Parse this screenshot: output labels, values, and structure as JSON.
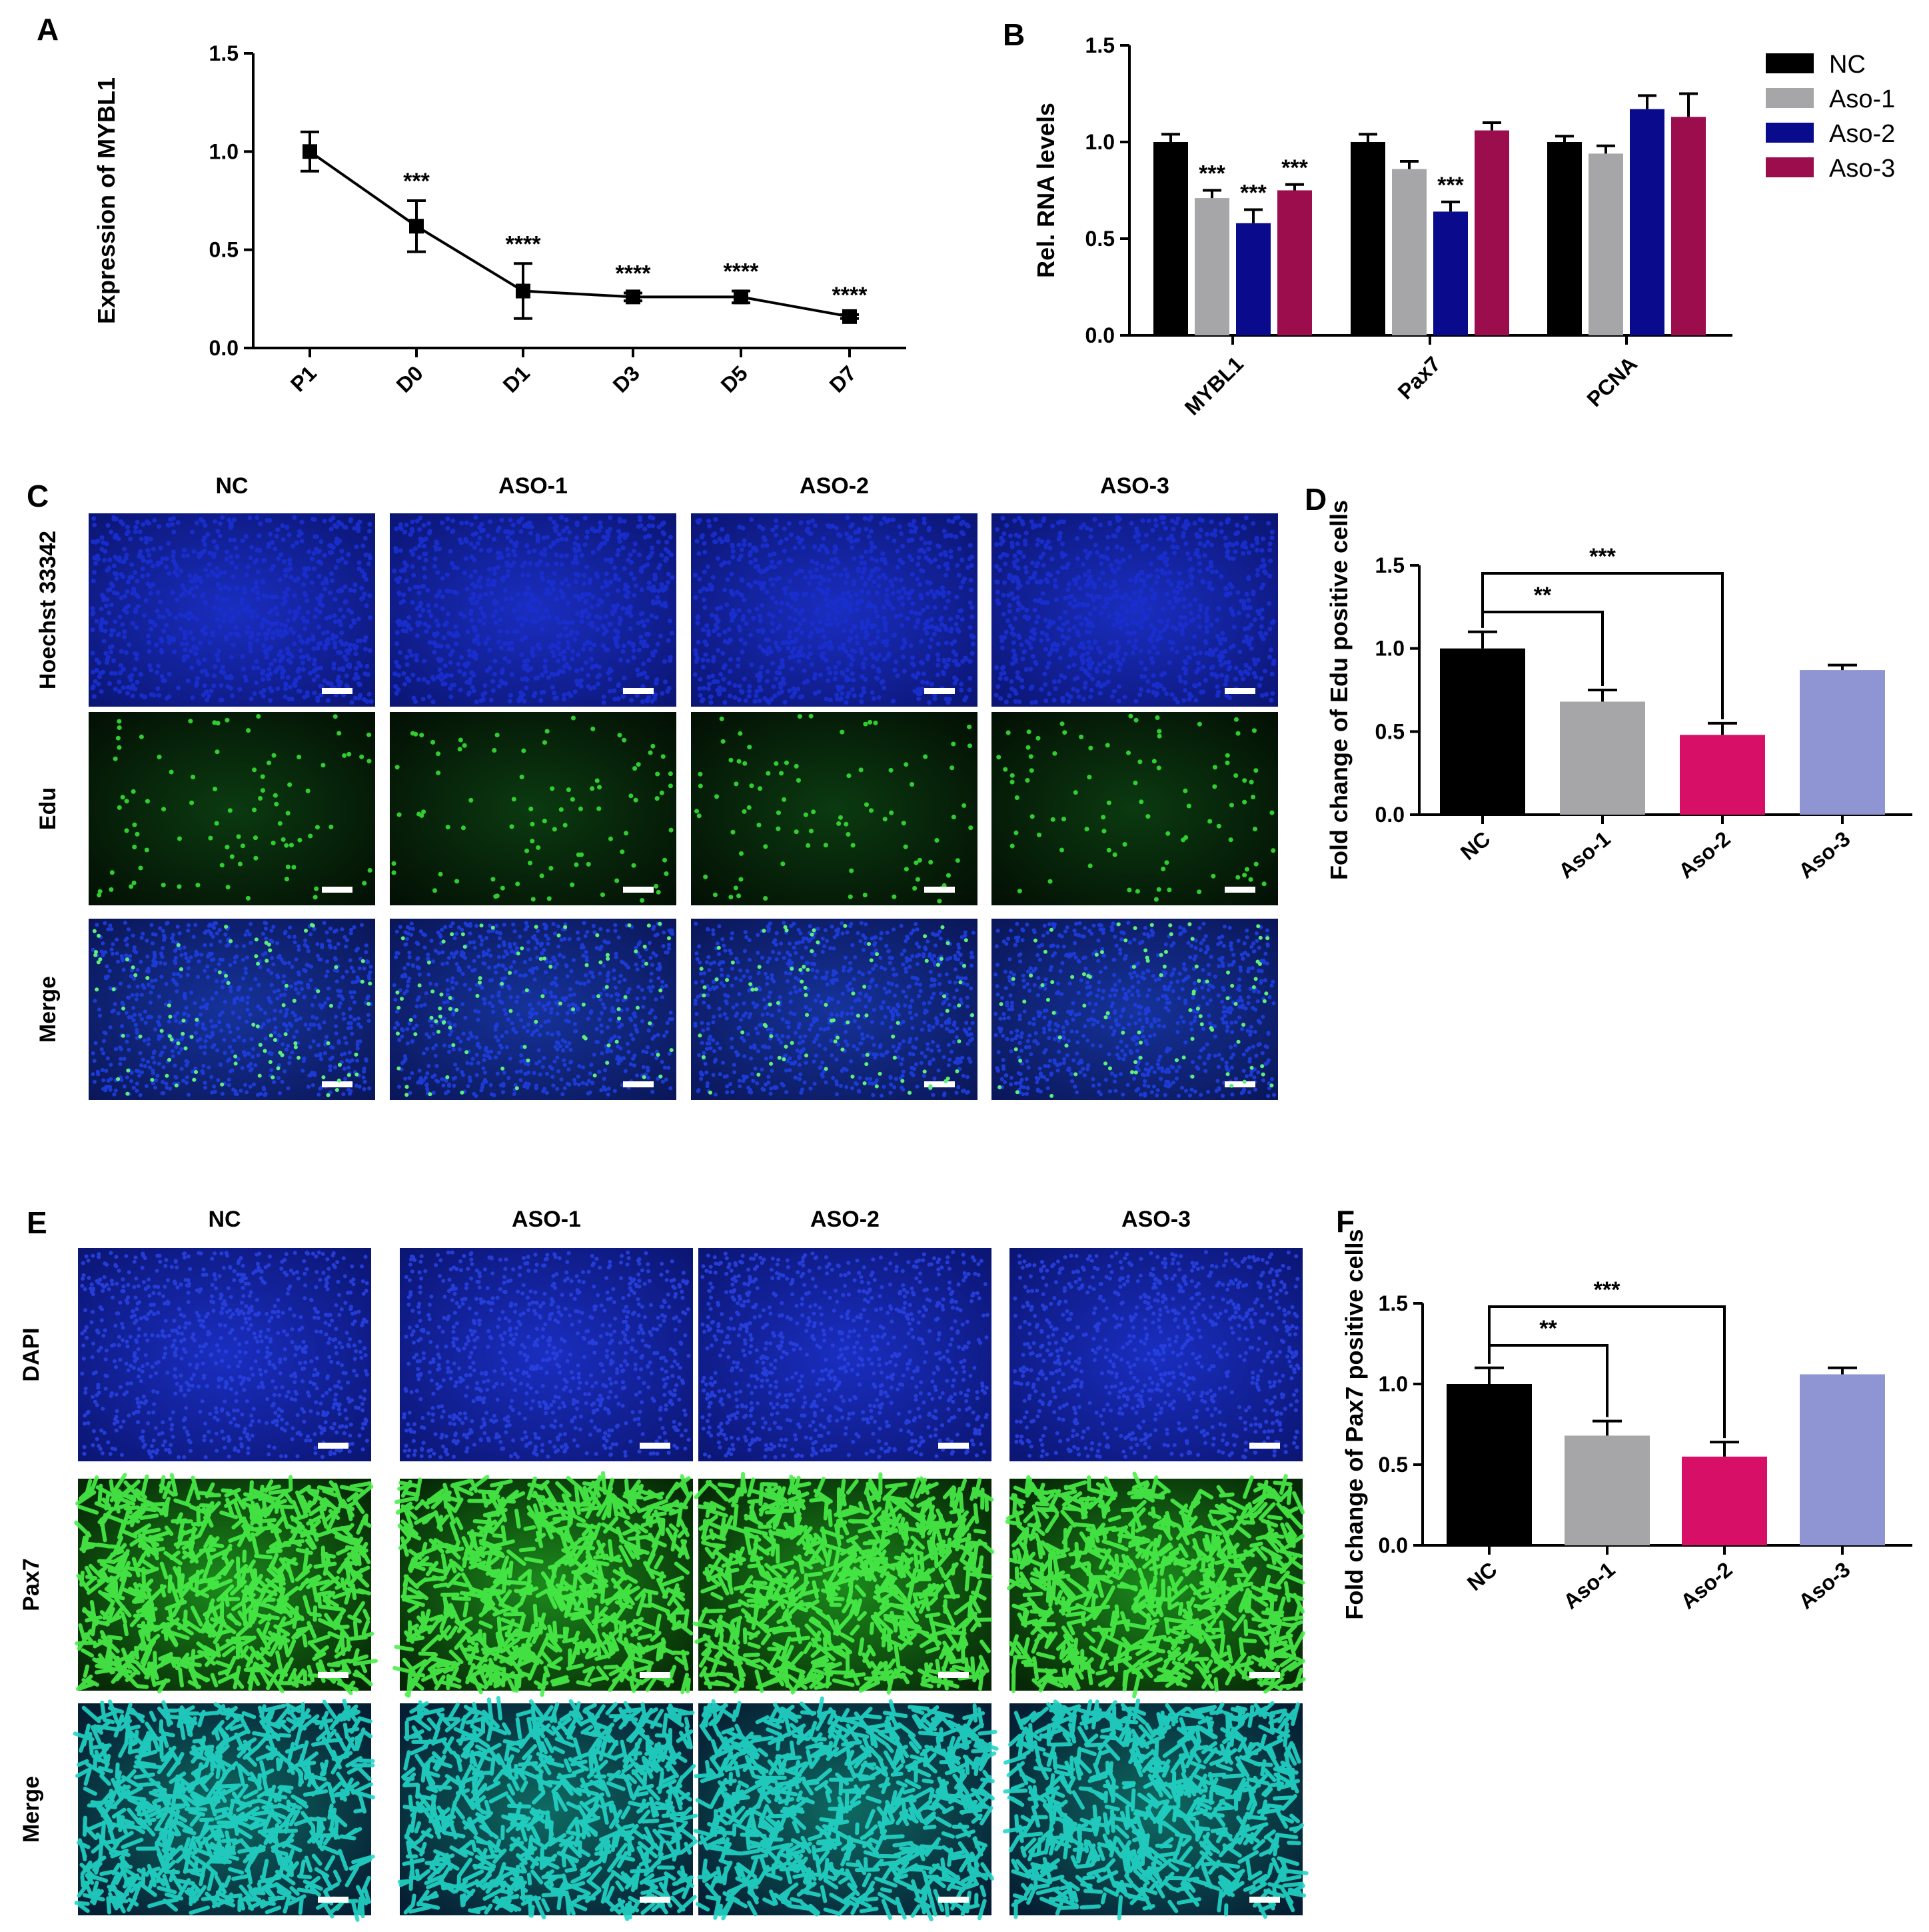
{
  "colors": {
    "nc": "#000000",
    "aso1": "#a6a6a8",
    "aso2_B": "#0a0a8c",
    "aso3_B": "#9c0d4e",
    "aso2_DF": "#d80f66",
    "aso3_DF": "#8f95d2",
    "blue_stain": "#1a2fd0",
    "green_stain": "#35e035",
    "cyan_stain": "#22d6c8"
  },
  "panels": {
    "A": "A",
    "B": "B",
    "C": "C",
    "D": "D",
    "E": "E",
    "F": "F"
  },
  "chart_data": [
    {
      "panel": "A",
      "type": "line",
      "ylabel": "Expression of MYBL1",
      "xlabel": "",
      "ylim": [
        0,
        1.5
      ],
      "yticks": [
        "0.0",
        "0.5",
        "1.0",
        "1.5"
      ],
      "categories": [
        "P1",
        "D0",
        "D1",
        "D3",
        "D5",
        "D7"
      ],
      "values": [
        1.0,
        0.62,
        0.29,
        0.26,
        0.26,
        0.16
      ],
      "errors": [
        0.1,
        0.13,
        0.14,
        0.02,
        0.03,
        0.01
      ],
      "significance": [
        "",
        "***",
        "****",
        "****",
        "****",
        "****"
      ]
    },
    {
      "panel": "B",
      "type": "bar",
      "ylabel": "Rel. RNA levels",
      "xlabel": "",
      "ylim": [
        0,
        1.5
      ],
      "yticks": [
        "0.0",
        "0.5",
        "1.0",
        "1.5"
      ],
      "categories": [
        "MYBL1",
        "Pax7",
        "PCNA"
      ],
      "legend": [
        "NC",
        "Aso-1",
        "Aso-2",
        "Aso-3"
      ],
      "legend_position": "top-right",
      "series": [
        {
          "name": "NC",
          "values": [
            1.0,
            1.0,
            1.0
          ],
          "errors": [
            0.04,
            0.04,
            0.03
          ]
        },
        {
          "name": "Aso-1",
          "values": [
            0.71,
            0.86,
            0.94
          ],
          "errors": [
            0.04,
            0.04,
            0.04
          ]
        },
        {
          "name": "Aso-2",
          "values": [
            0.58,
            0.64,
            1.17
          ],
          "errors": [
            0.07,
            0.05,
            0.07
          ]
        },
        {
          "name": "Aso-3",
          "values": [
            0.75,
            1.06,
            1.13
          ],
          "errors": [
            0.03,
            0.04,
            0.12
          ]
        }
      ],
      "significance": [
        [
          "",
          "***",
          "***",
          "***"
        ],
        [
          "",
          "",
          "***",
          ""
        ],
        [
          "",
          "",
          "",
          ""
        ]
      ]
    },
    {
      "panel": "D",
      "type": "bar",
      "ylabel": "Fold change of Edu positive cells",
      "xlabel": "",
      "ylim": [
        0,
        1.5
      ],
      "yticks": [
        "0.0",
        "0.5",
        "1.0",
        "1.5"
      ],
      "categories": [
        "NC",
        "Aso-1",
        "Aso-2",
        "Aso-3"
      ],
      "values": [
        1.0,
        0.68,
        0.48,
        0.87
      ],
      "errors": [
        0.1,
        0.07,
        0.07,
        0.03
      ],
      "brackets": [
        {
          "from": "NC",
          "to": "Aso-1",
          "label": "**"
        },
        {
          "from": "NC",
          "to": "Aso-2",
          "label": "***"
        }
      ]
    },
    {
      "panel": "F",
      "type": "bar",
      "ylabel": "Fold change of Pax7 positive cells",
      "xlabel": "",
      "ylim": [
        0,
        1.5
      ],
      "yticks": [
        "0.0",
        "0.5",
        "1.0",
        "1.5"
      ],
      "categories": [
        "NC",
        "Aso-1",
        "Aso-2",
        "Aso-3"
      ],
      "values": [
        1.0,
        0.68,
        0.55,
        1.06
      ],
      "errors": [
        0.1,
        0.09,
        0.09,
        0.04
      ],
      "brackets": [
        {
          "from": "NC",
          "to": "Aso-1",
          "label": "**"
        },
        {
          "from": "NC",
          "to": "Aso-2",
          "label": "***"
        }
      ]
    }
  ],
  "microscopy_C": {
    "columns": [
      "NC",
      "ASO-1",
      "ASO-2",
      "ASO-3"
    ],
    "rows": [
      "Hoechst 33342",
      "Edu",
      "Merge"
    ]
  },
  "microscopy_E": {
    "columns": [
      "NC",
      "ASO-1",
      "ASO-2",
      "ASO-3"
    ],
    "rows": [
      "DAPI",
      "Pax7",
      "Merge"
    ]
  }
}
